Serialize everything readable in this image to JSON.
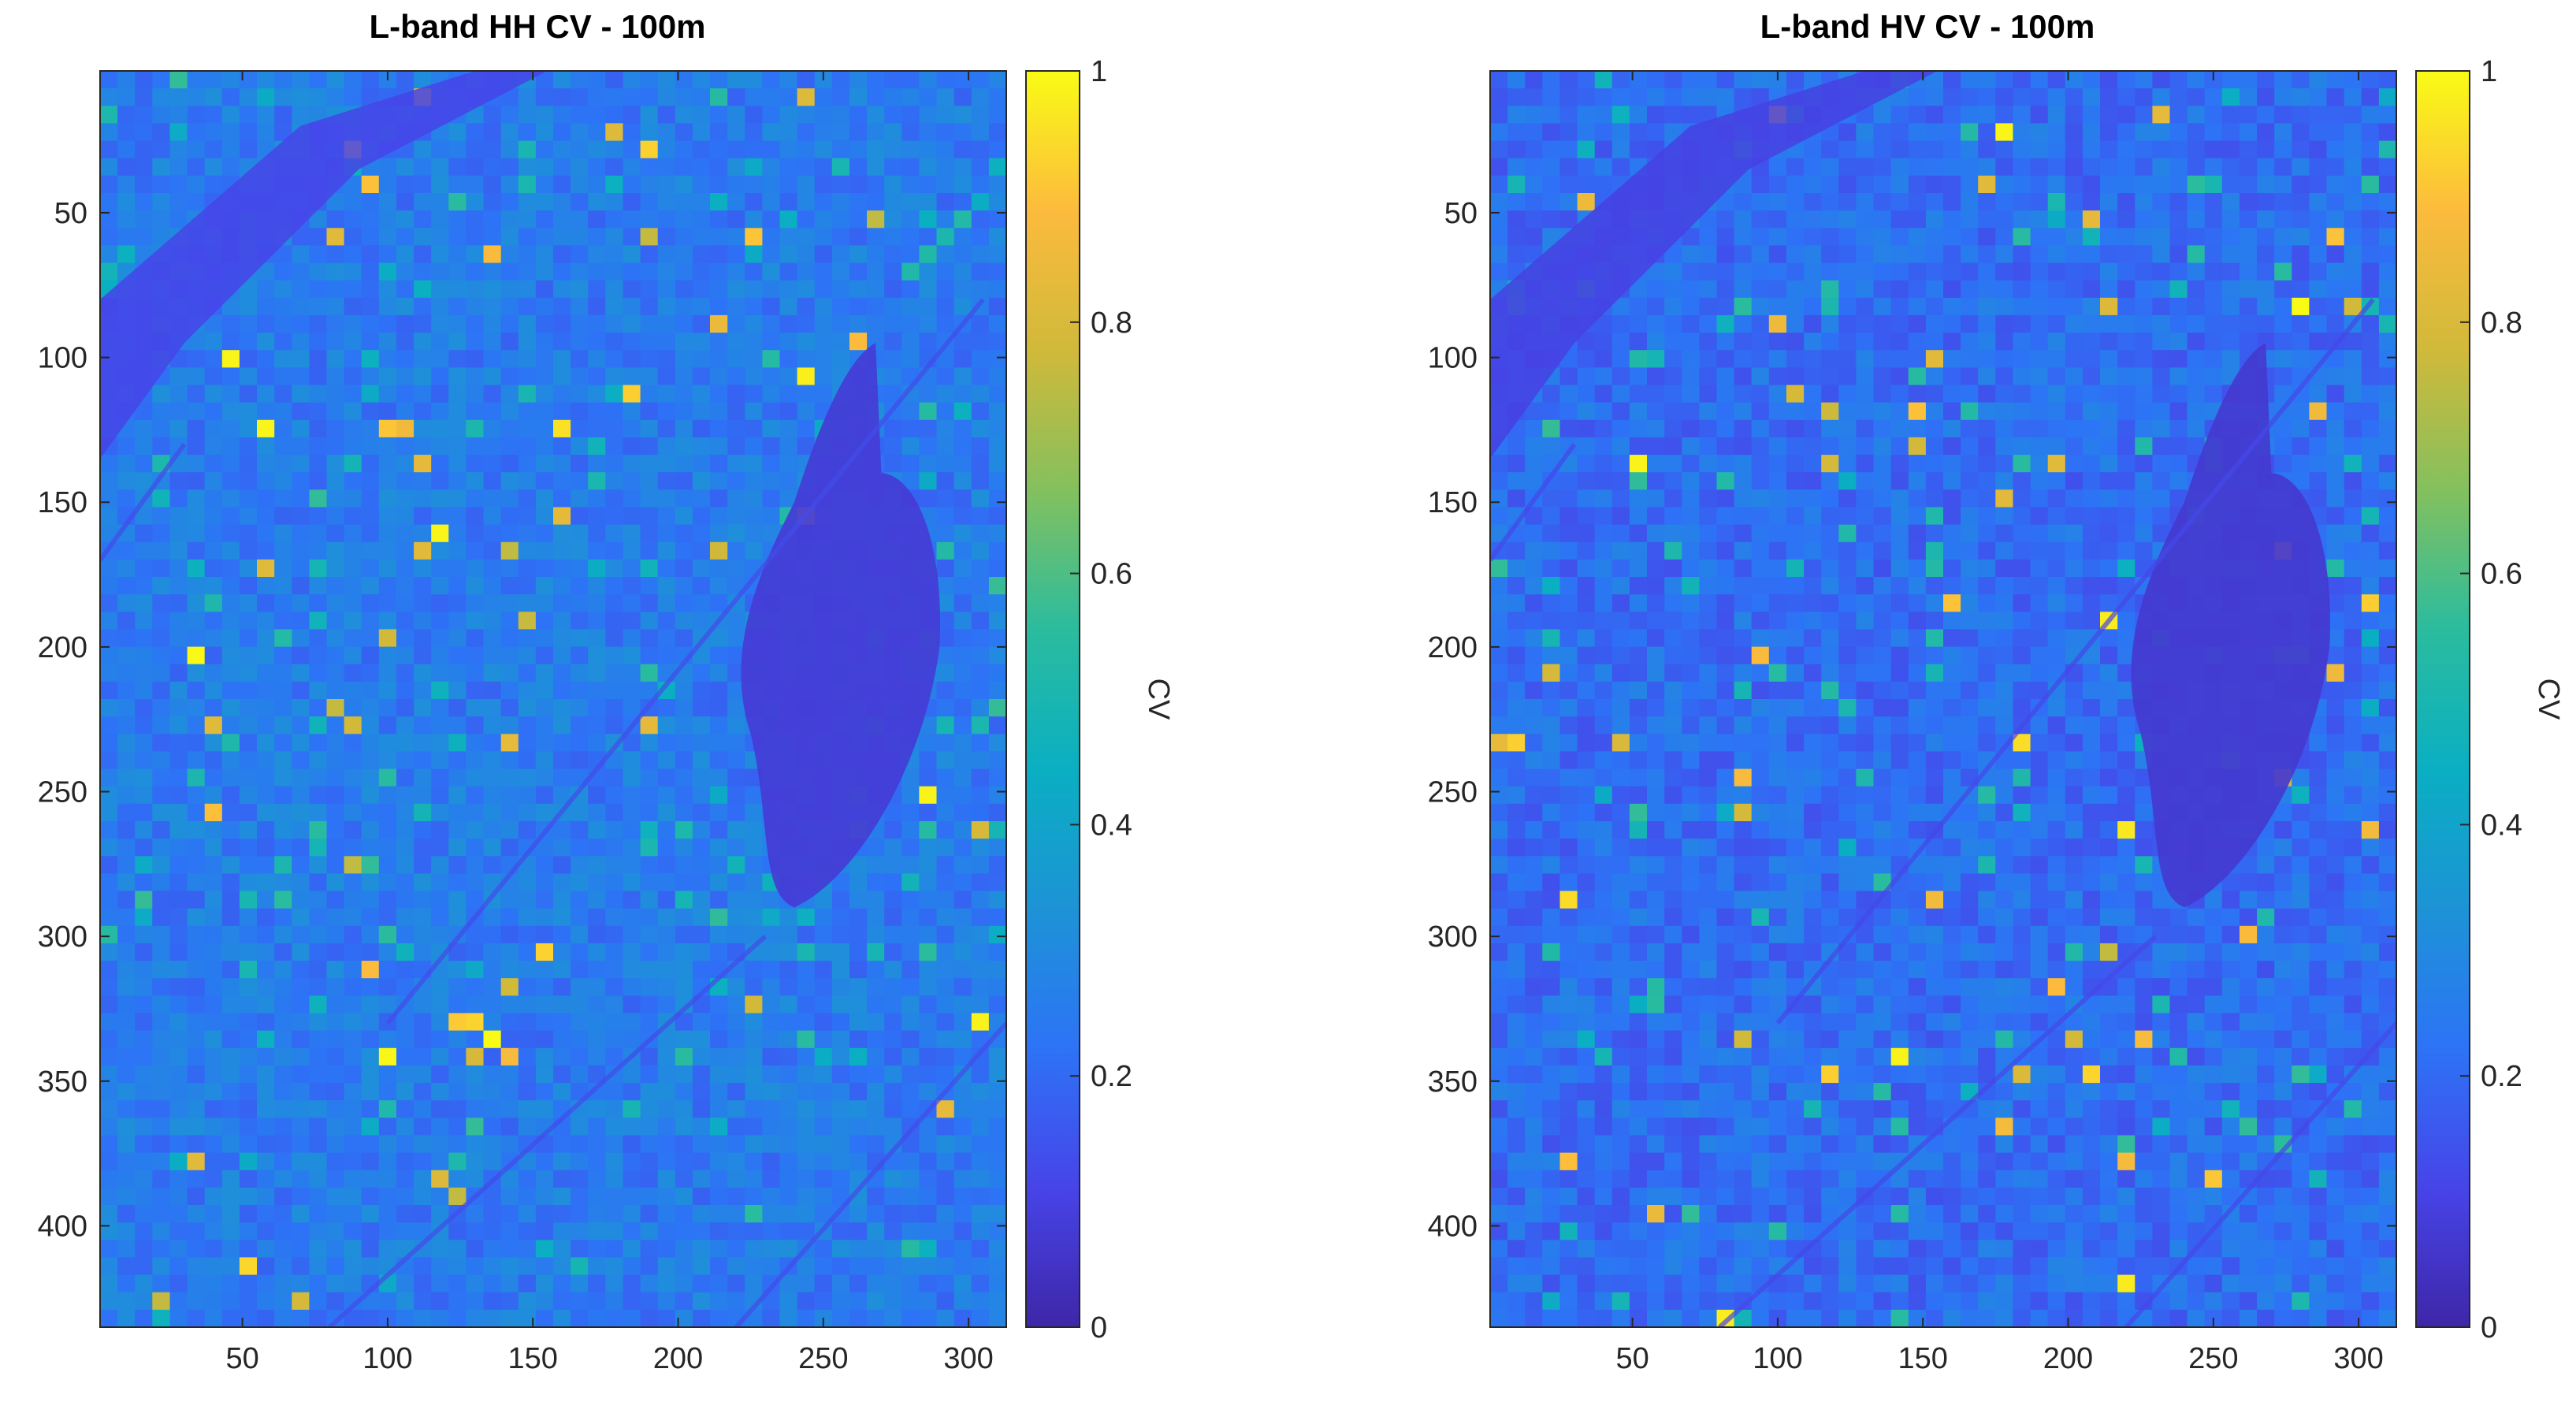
{
  "figure": {
    "colormap": [
      "#3e26a8",
      "#4744e8",
      "#2d73f6",
      "#1d93d6",
      "#0aafc2",
      "#2bbc9e",
      "#84c05e",
      "#d1b93a",
      "#fcbb3d",
      "#f9fb15"
    ]
  },
  "chart_data": [
    {
      "type": "heatmap",
      "title": "L-band HH CV - 100m",
      "xlabel": "",
      "ylabel": "",
      "xlim": [
        1,
        313
      ],
      "ylim": [
        435,
        1
      ],
      "x_ticks": [
        50,
        100,
        150,
        200,
        250,
        300
      ],
      "y_ticks": [
        50,
        100,
        150,
        200,
        250,
        300,
        350,
        400
      ],
      "colorbar": {
        "label": "CV",
        "range": [
          0,
          1
        ],
        "ticks": [
          0,
          0.2,
          0.4,
          0.6,
          0.8,
          1
        ]
      },
      "approx_mean_cv": 0.25,
      "approx_lake_cv": 0.08
    },
    {
      "type": "heatmap",
      "title": "L-band HV CV - 100m",
      "xlabel": "",
      "ylabel": "",
      "xlim": [
        1,
        313
      ],
      "ylim": [
        435,
        1
      ],
      "x_ticks": [
        50,
        100,
        150,
        200,
        250,
        300
      ],
      "y_ticks": [
        50,
        100,
        150,
        200,
        250,
        300,
        350,
        400
      ],
      "colorbar": {
        "label": "CV",
        "range": [
          0,
          1
        ],
        "ticks": [
          0,
          0.2,
          0.4,
          0.6,
          0.8,
          1
        ]
      },
      "approx_mean_cv": 0.21,
      "approx_lake_cv": 0.07
    }
  ]
}
